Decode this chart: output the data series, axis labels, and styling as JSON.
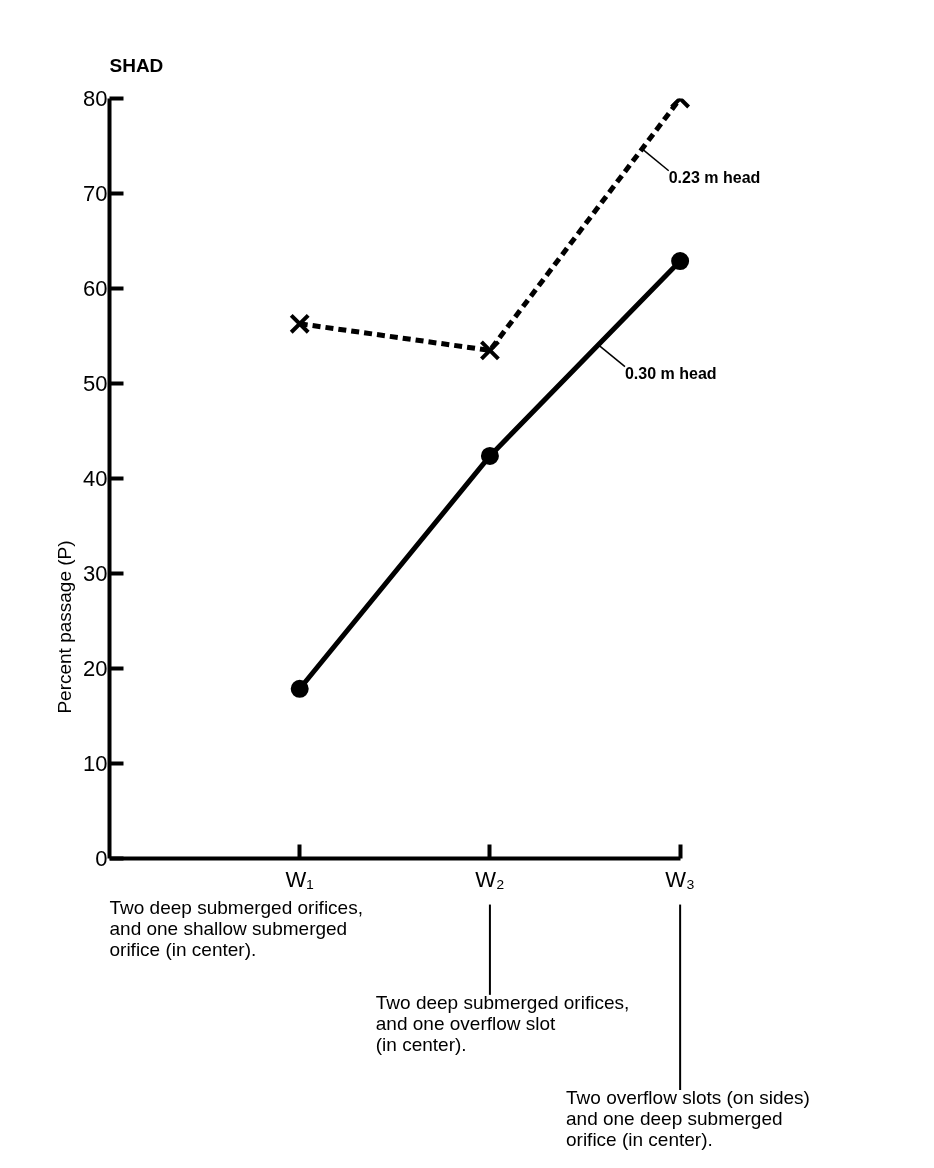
{
  "chart_data": {
    "type": "line",
    "title": "SHAD",
    "ylabel": "Percent passage (P)",
    "categories": [
      "W₁",
      "W₂",
      "W₃"
    ],
    "series": [
      {
        "name": "0.23 m head",
        "color": "#000000",
        "values": [
          56.3,
          53.5,
          80.0
        ],
        "line_style": "dashed",
        "marker": "cross"
      },
      {
        "name": "0.30 m head",
        "color": "#000000",
        "values": [
          17.9,
          42.4,
          62.9
        ],
        "line_style": "solid",
        "marker": "circle"
      }
    ],
    "ylim": [
      0,
      80
    ],
    "yticks": [
      0,
      10,
      20,
      30,
      40,
      50,
      60,
      70,
      80
    ],
    "grid": false,
    "legend": "right",
    "annotations": [
      "Two deep submerged orifices,\n and one shallow submerged\n orifice (in center).",
      "Two deep submerged orifices,\n and one overflow slot\n (in center).",
      "Two overflow slots (on sides)\n and one deep submerged\n orifice (in center)."
    ]
  }
}
